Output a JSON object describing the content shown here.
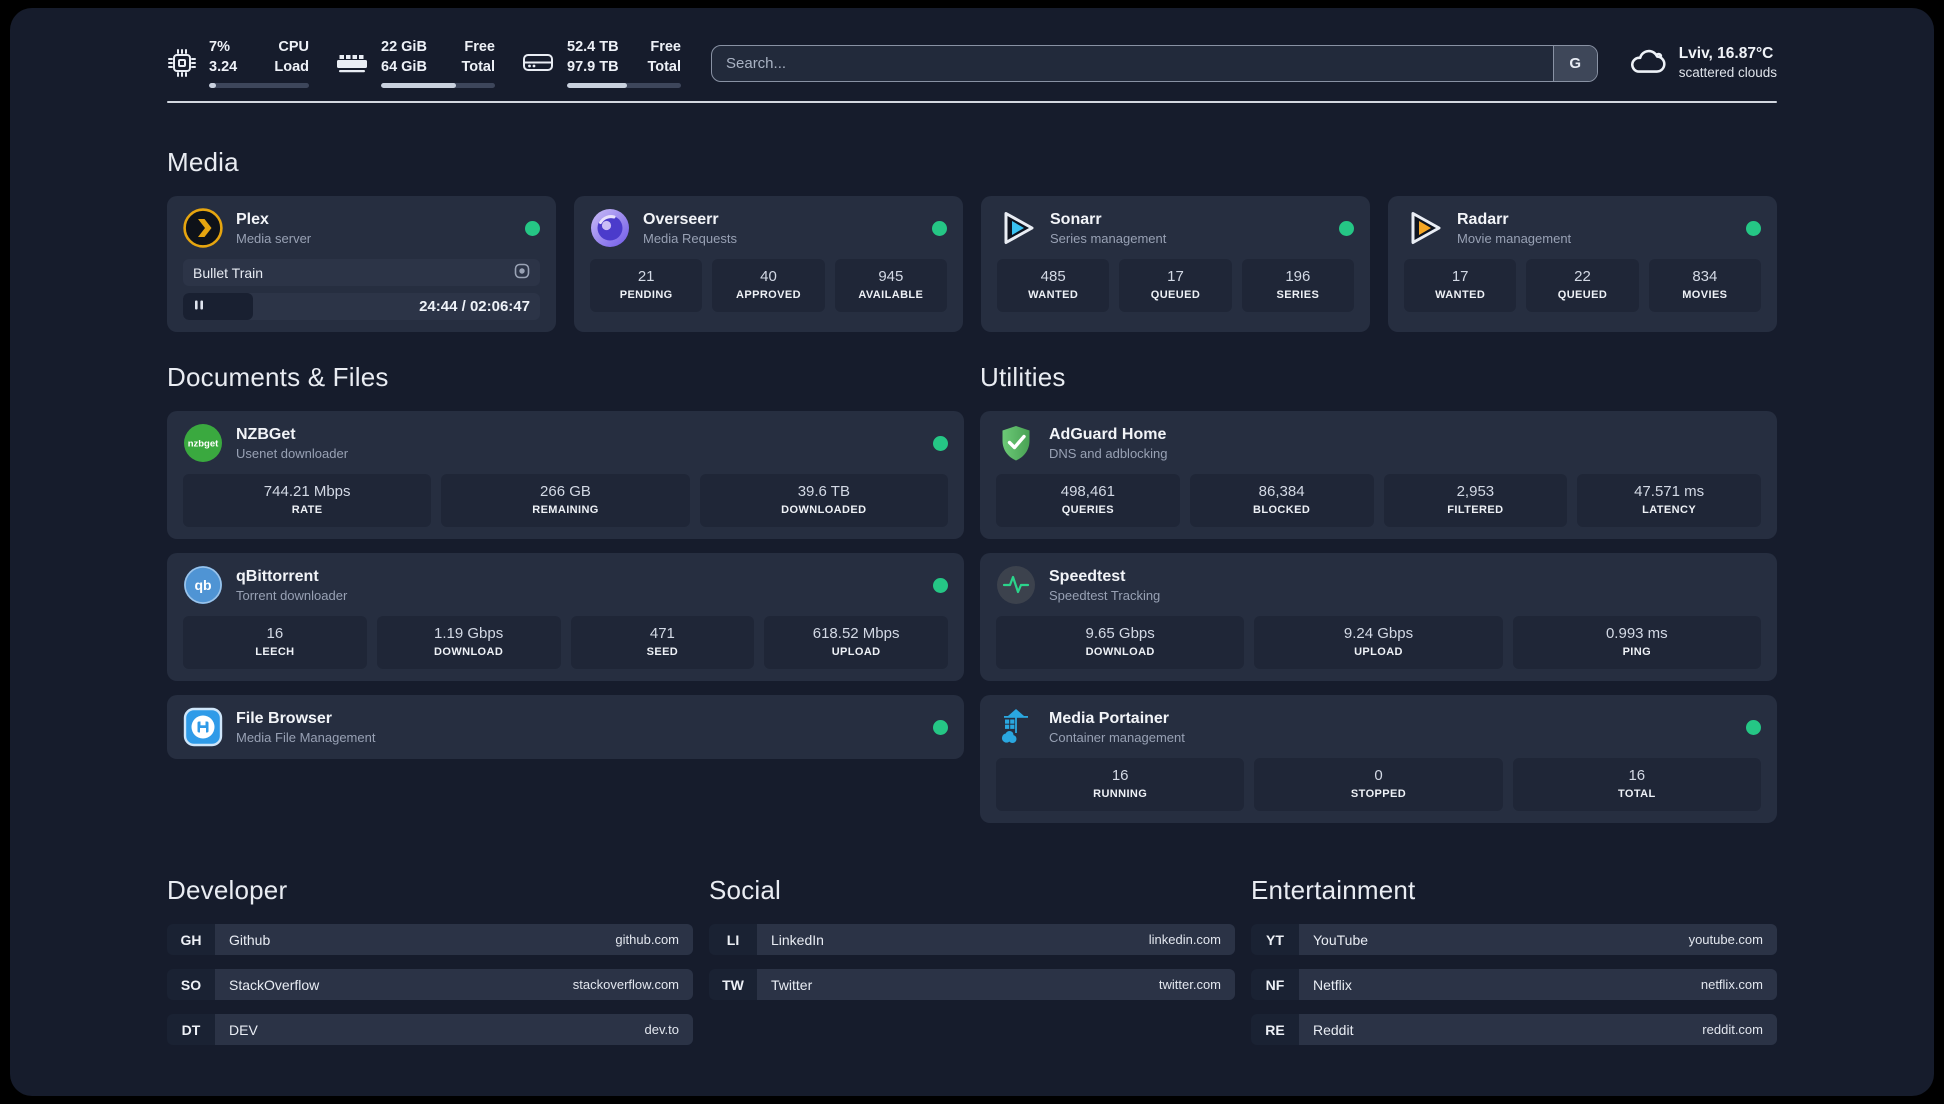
{
  "header": {
    "cpu": {
      "value_top": "7%",
      "value_bottom": "3.24",
      "label_top": "CPU",
      "label_bottom": "Load",
      "bar_pct": 7
    },
    "ram": {
      "value_top": "22 GiB",
      "value_bottom": "64 GiB",
      "label_top": "Free",
      "label_bottom": "Total",
      "bar_pct": 66
    },
    "disk": {
      "value_top": "52.4 TB",
      "value_bottom": "97.9 TB",
      "label_top": "Free",
      "label_bottom": "Total",
      "bar_pct": 53
    },
    "search": {
      "placeholder": "Search...",
      "button_label": "G"
    },
    "weather": {
      "location": "Lviv, 16.87°C",
      "condition": "scattered clouds"
    }
  },
  "sections": {
    "media": "Media",
    "documents": "Documents & Files",
    "utilities": "Utilities",
    "developer": "Developer",
    "social": "Social",
    "entertainment": "Entertainment"
  },
  "apps": {
    "plex": {
      "name": "Plex",
      "desc": "Media server",
      "online": true,
      "now_playing": "Bullet Train",
      "time": "24:44 / 02:06:47",
      "progress_pct": 19.5
    },
    "overseerr": {
      "name": "Overseerr",
      "desc": "Media Requests",
      "online": true,
      "stats": [
        {
          "value": "21",
          "label": "PENDING"
        },
        {
          "value": "40",
          "label": "APPROVED"
        },
        {
          "value": "945",
          "label": "AVAILABLE"
        }
      ]
    },
    "sonarr": {
      "name": "Sonarr",
      "desc": "Series management",
      "online": true,
      "stats": [
        {
          "value": "485",
          "label": "WANTED"
        },
        {
          "value": "17",
          "label": "QUEUED"
        },
        {
          "value": "196",
          "label": "SERIES"
        }
      ]
    },
    "radarr": {
      "name": "Radarr",
      "desc": "Movie management",
      "online": true,
      "stats": [
        {
          "value": "17",
          "label": "WANTED"
        },
        {
          "value": "22",
          "label": "QUEUED"
        },
        {
          "value": "834",
          "label": "MOVIES"
        }
      ]
    },
    "nzbget": {
      "name": "NZBGet",
      "desc": "Usenet downloader",
      "online": true,
      "icon_text": "nzbget",
      "stats": [
        {
          "value": "744.21 Mbps",
          "label": "RATE"
        },
        {
          "value": "266 GB",
          "label": "REMAINING"
        },
        {
          "value": "39.6 TB",
          "label": "DOWNLOADED"
        }
      ]
    },
    "qbittorrent": {
      "name": "qBittorrent",
      "desc": "Torrent downloader",
      "online": true,
      "icon_text": "qb",
      "stats": [
        {
          "value": "16",
          "label": "LEECH"
        },
        {
          "value": "1.19 Gbps",
          "label": "DOWNLOAD"
        },
        {
          "value": "471",
          "label": "SEED"
        },
        {
          "value": "618.52 Mbps",
          "label": "UPLOAD"
        }
      ]
    },
    "filebrowser": {
      "name": "File Browser",
      "desc": "Media File Management",
      "online": true
    },
    "adguard": {
      "name": "AdGuard Home",
      "desc": "DNS and adblocking",
      "stats": [
        {
          "value": "498,461",
          "label": "QUERIES"
        },
        {
          "value": "86,384",
          "label": "BLOCKED"
        },
        {
          "value": "2,953",
          "label": "FILTERED"
        },
        {
          "value": "47.571 ms",
          "label": "LATENCY"
        }
      ]
    },
    "speedtest": {
      "name": "Speedtest",
      "desc": "Speedtest Tracking",
      "stats": [
        {
          "value": "9.65 Gbps",
          "label": "DOWNLOAD"
        },
        {
          "value": "9.24 Gbps",
          "label": "UPLOAD"
        },
        {
          "value": "0.993 ms",
          "label": "PING"
        }
      ]
    },
    "portainer": {
      "name": "Media Portainer",
      "desc": "Container management",
      "online": true,
      "stats": [
        {
          "value": "16",
          "label": "RUNNING"
        },
        {
          "value": "0",
          "label": "STOPPED"
        },
        {
          "value": "16",
          "label": "TOTAL"
        }
      ]
    }
  },
  "links": {
    "developer": [
      {
        "abbr": "GH",
        "label": "Github",
        "url": "github.com"
      },
      {
        "abbr": "SO",
        "label": "StackOverflow",
        "url": "stackoverflow.com"
      },
      {
        "abbr": "DT",
        "label": "DEV",
        "url": "dev.to"
      }
    ],
    "social": [
      {
        "abbr": "LI",
        "label": "LinkedIn",
        "url": "linkedin.com"
      },
      {
        "abbr": "TW",
        "label": "Twitter",
        "url": "twitter.com"
      }
    ],
    "entertainment": [
      {
        "abbr": "YT",
        "label": "YouTube",
        "url": "youtube.com"
      },
      {
        "abbr": "NF",
        "label": "Netflix",
        "url": "netflix.com"
      },
      {
        "abbr": "RE",
        "label": "Reddit",
        "url": "reddit.com"
      }
    ]
  },
  "colors": {
    "page-bg": "#161c2c",
    "card-bg": "#262e40",
    "box-bg": "#1f2637",
    "row-bg": "#2b3346",
    "badge-bg": "#1a2233",
    "status-online": "#25c685",
    "plex-accent": "#e6a50f",
    "sonarr-accent": "#3ac2f2",
    "radarr-accent": "#f6a623",
    "nzbget-green": "#3aa93f",
    "adguard-green": "#55b864",
    "qbittorrent-blue": "#4f94d4",
    "speedtest-green": "#2bd48b",
    "filebrowser-blue": "#2f9be8",
    "portainer-blue": "#2aa7e0",
    "overseerr-purple": "#6f59e8"
  }
}
